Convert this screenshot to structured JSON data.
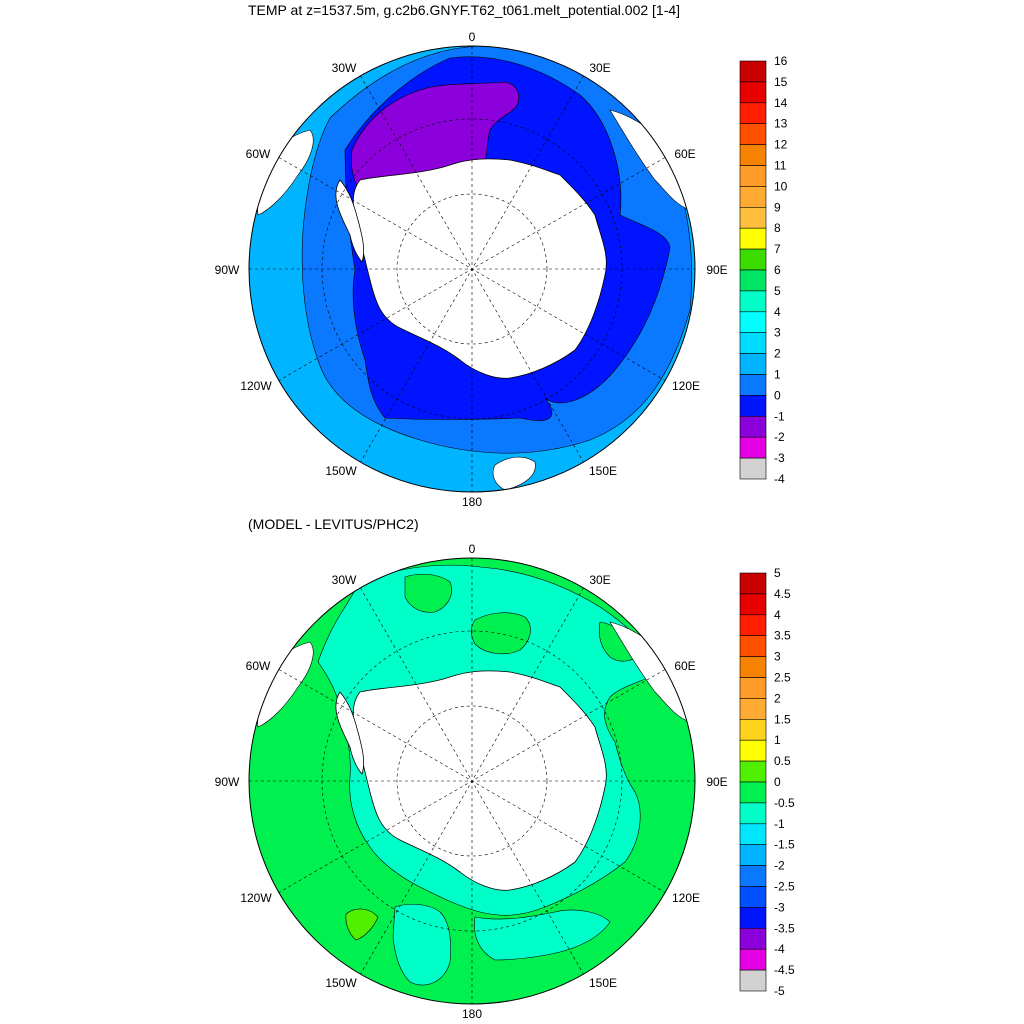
{
  "panels": [
    {
      "title": "TEMP at z=1537.5m, g.c2b6.GNYF.T62_t061.melt_potential.002 [1-4]",
      "map_labels": {
        "n": "0",
        "e": "90E",
        "s": "180",
        "w": "90W",
        "ne1": "30E",
        "ne2": "60E",
        "se1": "120E",
        "se2": "150E",
        "nw1": "30W",
        "nw2": "60W",
        "sw1": "120W",
        "sw2": "150W"
      },
      "colorbar_labels": [
        "16",
        "15",
        "14",
        "13",
        "12",
        "11",
        "10",
        "9",
        "8",
        "7",
        "6",
        "5",
        "4",
        "3",
        "2",
        "1",
        "0",
        "-1",
        "-2",
        "-3",
        "-4"
      ],
      "colorbar_colors": [
        "#c80000",
        "#e60000",
        "#ff1e00",
        "#ff5000",
        "#f58200",
        "#ff9b28",
        "#ffaa32",
        "#ffbe3c",
        "#ffff00",
        "#3cdc00",
        "#00e664",
        "#00ffc8",
        "#00ffff",
        "#00dcff",
        "#00b4ff",
        "#0a78ff",
        "#0014ff",
        "#8c00dc",
        "#e600e6",
        "#d2d2d2",
        "#6e6e6e"
      ]
    },
    {
      "title": "(MODEL - LEVITUS/PHC2)",
      "map_labels": {
        "n": "0",
        "e": "90E",
        "s": "180",
        "w": "90W",
        "ne1": "30E",
        "ne2": "60E",
        "se1": "120E",
        "se2": "150E",
        "nw1": "30W",
        "nw2": "60W",
        "sw1": "120W",
        "sw2": "150W"
      },
      "colorbar_labels": [
        "5",
        "4.5",
        "4",
        "3.5",
        "3",
        "2.5",
        "2",
        "1.5",
        "1",
        "0.5",
        "0",
        "-0.5",
        "-1",
        "-1.5",
        "-2",
        "-2.5",
        "-3",
        "-3.5",
        "-4",
        "-4.5",
        "-5"
      ],
      "colorbar_colors": [
        "#c80000",
        "#e60000",
        "#ff1e00",
        "#ff5000",
        "#f58200",
        "#ff9b28",
        "#ffaa32",
        "#ffd21e",
        "#ffff00",
        "#50f000",
        "#00f050",
        "#00ffc8",
        "#00e6ff",
        "#00b4ff",
        "#0a78ff",
        "#0050ff",
        "#0014ff",
        "#8c00dc",
        "#e600e6",
        "#d2d2d2",
        "#6e6e6e"
      ]
    }
  ],
  "colors": {
    "land": "#ffffff",
    "top_outer": "#00b4ff",
    "top_mid": "#0a78ff",
    "top_inner": "#0014ff",
    "top_cold": "#8c00dc",
    "bot_main": "#00f050",
    "bot_cyan": "#00ffc8",
    "bot_bright": "#50f000"
  }
}
